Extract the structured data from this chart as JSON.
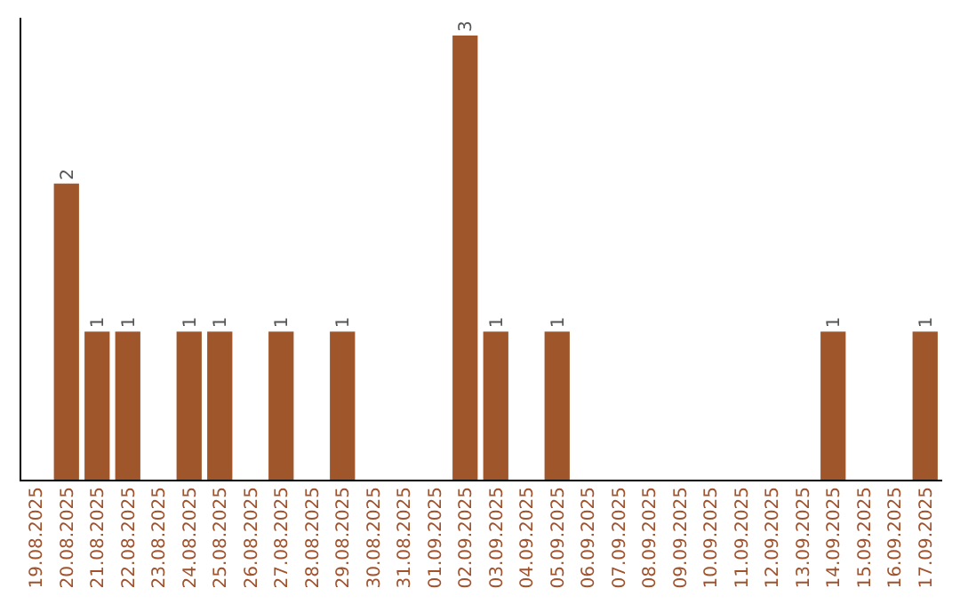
{
  "chart_data": {
    "type": "bar",
    "categories": [
      "19.08.2025",
      "20.08.2025",
      "21.08.2025",
      "22.08.2025",
      "23.08.2025",
      "24.08.2025",
      "25.08.2025",
      "26.08.2025",
      "27.08.2025",
      "28.08.2025",
      "29.08.2025",
      "30.08.2025",
      "31.08.2025",
      "01.09.2025",
      "02.09.2025",
      "03.09.2025",
      "04.09.2025",
      "05.09.2025",
      "06.09.2025",
      "07.09.2025",
      "08.09.2025",
      "09.09.2025",
      "10.09.2025",
      "11.09.2025",
      "12.09.2025",
      "13.09.2025",
      "14.09.2025",
      "15.09.2025",
      "16.09.2025",
      "17.09.2025"
    ],
    "values": [
      0,
      2,
      1,
      1,
      0,
      1,
      1,
      0,
      1,
      0,
      1,
      0,
      0,
      0,
      3,
      1,
      0,
      1,
      0,
      0,
      0,
      0,
      0,
      0,
      0,
      0,
      1,
      0,
      0,
      1
    ],
    "value_labels": [
      null,
      "2",
      "1",
      "1",
      null,
      "1",
      "1",
      null,
      "1",
      null,
      "1",
      null,
      null,
      null,
      "3",
      "1",
      null,
      "1",
      null,
      null,
      null,
      null,
      null,
      null,
      null,
      null,
      "1",
      null,
      null,
      "1"
    ],
    "color": "#a0562b",
    "ylim": [
      0,
      3
    ]
  }
}
